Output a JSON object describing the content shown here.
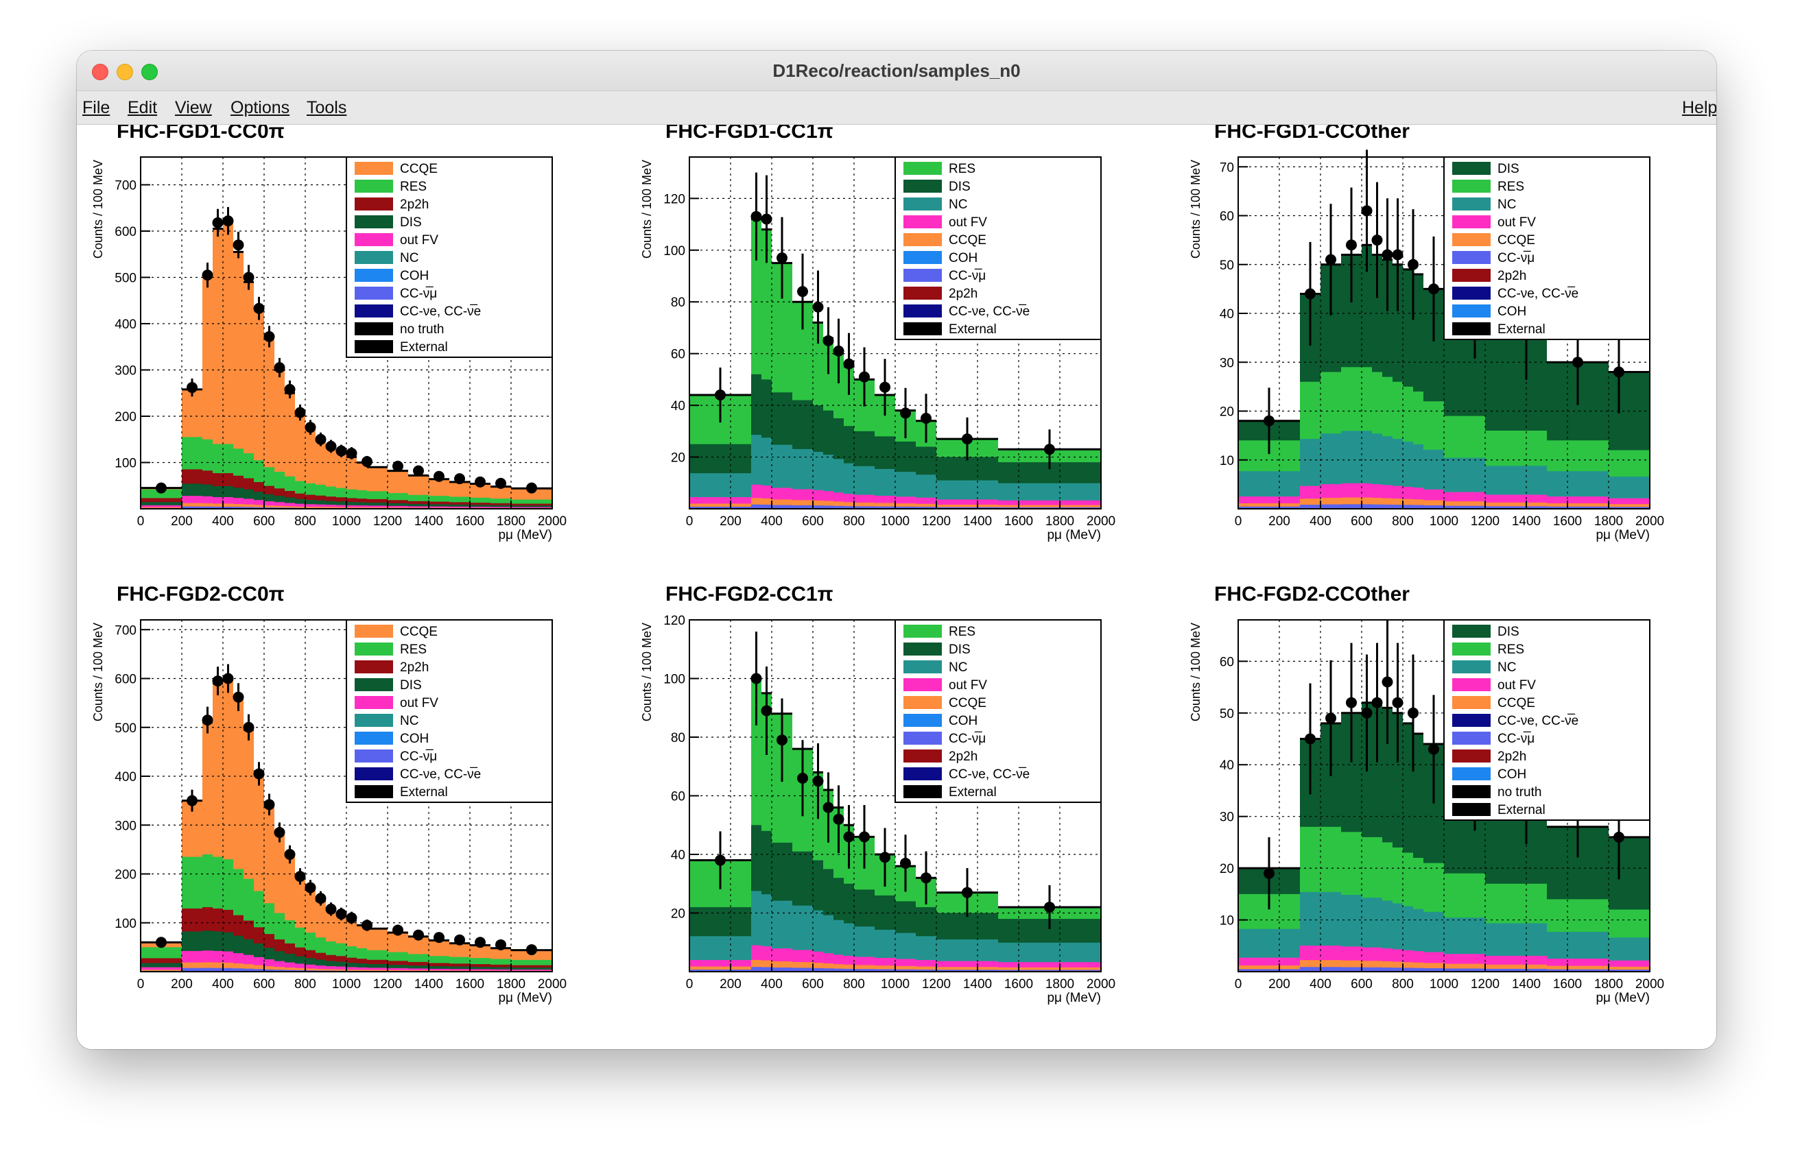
{
  "window": {
    "title": "D1Reco/reaction/samples_n0"
  },
  "menubar": {
    "file": "File",
    "edit": "Edit",
    "view": "View",
    "options": "Options",
    "tools": "Tools",
    "help": "Help"
  },
  "colors": {
    "CCQE": "#fd8c3c",
    "RES": "#2dc443",
    "2p2h": "#960d12",
    "DIS": "#0b5a30",
    "out FV": "#ff2ec3",
    "NC": "#24938f",
    "COH": "#1e86f0",
    "CC-nubar_mu": "#5a63ee",
    "CC-nu_e": "#0b0b8a",
    "no truth": "#000000",
    "External": "#000000"
  },
  "chart_data": [
    {
      "type": "bar",
      "title": "FHC-FGD1-CC0π",
      "ylabel": "Counts / 100 MeV",
      "xlabel": "pμ (MeV)",
      "ylim": [
        0,
        760
      ],
      "yticks": [
        100,
        200,
        300,
        400,
        500,
        600,
        700
      ],
      "xlim": [
        0,
        2000
      ],
      "xticks": [
        0,
        200,
        400,
        600,
        800,
        1000,
        1200,
        1400,
        1600,
        1800,
        2000
      ],
      "legend": [
        "CCQE",
        "RES",
        "2p2h",
        "DIS",
        "out FV",
        "NC",
        "COH",
        "CC-ν̅μ",
        "CC-νe, CC-ν̅e",
        "no truth",
        "External"
      ],
      "bins": [
        0,
        200,
        300,
        350,
        400,
        450,
        500,
        550,
        600,
        650,
        700,
        750,
        800,
        850,
        900,
        950,
        1000,
        1050,
        1100,
        1200,
        1300,
        1400,
        1500,
        1600,
        1700,
        1800,
        2000
      ],
      "total": [
        45,
        258,
        505,
        605,
        620,
        555,
        490,
        430,
        370,
        300,
        250,
        205,
        175,
        150,
        135,
        122,
        112,
        100,
        90,
        82,
        72,
        64,
        58,
        54,
        48,
        44
      ],
      "non_ccqe": [
        42,
        155,
        150,
        140,
        140,
        130,
        120,
        105,
        90,
        80,
        70,
        60,
        55,
        52,
        48,
        45,
        42,
        40,
        38,
        34,
        30,
        28,
        26,
        24,
        22,
        20
      ],
      "data_points": [
        [
          100,
          45
        ],
        [
          250,
          262
        ],
        [
          325,
          505
        ],
        [
          375,
          618
        ],
        [
          425,
          622
        ],
        [
          475,
          570
        ],
        [
          525,
          500
        ],
        [
          575,
          433
        ],
        [
          625,
          372
        ],
        [
          675,
          305
        ],
        [
          725,
          258
        ],
        [
          775,
          208
        ],
        [
          825,
          176
        ],
        [
          875,
          150
        ],
        [
          925,
          135
        ],
        [
          975,
          125
        ],
        [
          1025,
          120
        ],
        [
          1100,
          102
        ],
        [
          1250,
          92
        ],
        [
          1350,
          82
        ],
        [
          1450,
          70
        ],
        [
          1550,
          65
        ],
        [
          1650,
          58
        ],
        [
          1750,
          55
        ],
        [
          1900,
          45
        ]
      ]
    },
    {
      "type": "bar",
      "title": "FHC-FGD1-CC1π",
      "ylabel": "Counts / 100 MeV",
      "xlabel": "pμ (MeV)",
      "ylim": [
        0,
        136
      ],
      "yticks": [
        20,
        40,
        60,
        80,
        100,
        120
      ],
      "xlim": [
        0,
        2000
      ],
      "xticks": [
        0,
        200,
        400,
        600,
        800,
        1000,
        1200,
        1400,
        1600,
        1800,
        2000
      ],
      "legend": [
        "RES",
        "DIS",
        "NC",
        "out FV",
        "CCQE",
        "COH",
        "CC-ν̅μ",
        "2p2h",
        "CC-νe, CC-ν̅e",
        "External"
      ],
      "bins": [
        0,
        300,
        350,
        400,
        500,
        600,
        650,
        700,
        750,
        800,
        900,
        1000,
        1100,
        1200,
        1500,
        1800,
        2000
      ],
      "total": [
        44,
        112,
        108,
        95,
        80,
        72,
        66,
        60,
        55,
        50,
        44,
        38,
        34,
        27,
        23,
        23
      ],
      "non_res": [
        25,
        52,
        50,
        45,
        42,
        40,
        38,
        35,
        32,
        30,
        28,
        26,
        24,
        20,
        18,
        18
      ],
      "data_points": [
        [
          150,
          44
        ],
        [
          325,
          113
        ],
        [
          375,
          112
        ],
        [
          450,
          97
        ],
        [
          550,
          84
        ],
        [
          625,
          78
        ],
        [
          675,
          65
        ],
        [
          725,
          61
        ],
        [
          775,
          56
        ],
        [
          850,
          51
        ],
        [
          950,
          47
        ],
        [
          1050,
          37
        ],
        [
          1150,
          35
        ],
        [
          1350,
          27
        ],
        [
          1750,
          23
        ]
      ]
    },
    {
      "type": "bar",
      "title": "FHC-FGD1-CCOther",
      "ylabel": "Counts / 100 MeV",
      "xlabel": "pμ (MeV)",
      "ylim": [
        0,
        72
      ],
      "yticks": [
        10,
        20,
        30,
        40,
        50,
        60,
        70
      ],
      "xlim": [
        0,
        2000
      ],
      "xticks": [
        0,
        200,
        400,
        600,
        800,
        1000,
        1200,
        1400,
        1600,
        1800,
        2000
      ],
      "legend": [
        "DIS",
        "RES",
        "NC",
        "out FV",
        "CCQE",
        "CC-ν̅μ",
        "2p2h",
        "CC-νe, CC-ν̅e",
        "COH",
        "External"
      ],
      "bins": [
        0,
        300,
        400,
        500,
        600,
        650,
        700,
        750,
        800,
        850,
        900,
        1000,
        1200,
        1500,
        1800,
        2000
      ],
      "total": [
        18,
        44,
        50,
        52,
        54,
        52,
        51,
        50,
        49,
        48,
        45,
        40,
        35,
        30,
        28
      ],
      "non_dis": [
        14,
        26,
        28,
        29,
        29,
        28,
        27,
        26,
        25,
        24,
        22,
        19,
        16,
        14,
        12
      ],
      "data_points": [
        [
          150,
          18
        ],
        [
          350,
          44
        ],
        [
          450,
          51
        ],
        [
          550,
          54
        ],
        [
          625,
          61
        ],
        [
          675,
          55
        ],
        [
          725,
          52
        ],
        [
          775,
          52
        ],
        [
          850,
          50
        ],
        [
          950,
          45
        ],
        [
          1150,
          41
        ],
        [
          1400,
          36
        ],
        [
          1650,
          30
        ],
        [
          1850,
          28
        ]
      ]
    },
    {
      "type": "bar",
      "title": "FHC-FGD2-CC0π",
      "ylabel": "Counts / 100 MeV",
      "xlabel": "pμ (MeV)",
      "ylim": [
        0,
        720
      ],
      "yticks": [
        100,
        200,
        300,
        400,
        500,
        600,
        700
      ],
      "xlim": [
        0,
        2000
      ],
      "xticks": [
        0,
        200,
        400,
        600,
        800,
        1000,
        1200,
        1400,
        1600,
        1800,
        2000
      ],
      "legend": [
        "CCQE",
        "RES",
        "2p2h",
        "DIS",
        "out FV",
        "NC",
        "COH",
        "CC-ν̅μ",
        "CC-νe, CC-ν̅e",
        "External"
      ],
      "bins": [
        0,
        200,
        300,
        350,
        400,
        450,
        500,
        550,
        600,
        650,
        700,
        750,
        800,
        850,
        900,
        950,
        1000,
        1050,
        1100,
        1200,
        1300,
        1400,
        1500,
        1600,
        1700,
        1800,
        2000
      ],
      "total": [
        60,
        350,
        510,
        590,
        600,
        560,
        495,
        410,
        340,
        285,
        240,
        195,
        170,
        145,
        125,
        115,
        105,
        95,
        88,
        80,
        72,
        64,
        58,
        54,
        48,
        44
      ],
      "non_ccqe": [
        50,
        235,
        240,
        235,
        230,
        210,
        190,
        165,
        140,
        120,
        105,
        90,
        80,
        70,
        62,
        58,
        52,
        48,
        44,
        40,
        36,
        32,
        30,
        28,
        26,
        24
      ],
      "data_points": [
        [
          100,
          60
        ],
        [
          250,
          350
        ],
        [
          325,
          515
        ],
        [
          375,
          595
        ],
        [
          425,
          600
        ],
        [
          475,
          562
        ],
        [
          525,
          500
        ],
        [
          575,
          405
        ],
        [
          625,
          342
        ],
        [
          675,
          285
        ],
        [
          725,
          240
        ],
        [
          775,
          195
        ],
        [
          825,
          172
        ],
        [
          875,
          150
        ],
        [
          925,
          128
        ],
        [
          975,
          118
        ],
        [
          1025,
          110
        ],
        [
          1100,
          95
        ],
        [
          1250,
          85
        ],
        [
          1350,
          75
        ],
        [
          1450,
          70
        ],
        [
          1550,
          65
        ],
        [
          1650,
          60
        ],
        [
          1750,
          55
        ],
        [
          1900,
          45
        ]
      ]
    },
    {
      "type": "bar",
      "title": "FHC-FGD2-CC1π",
      "ylabel": "Counts / 100 MeV",
      "xlabel": "pμ (MeV)",
      "ylim": [
        0,
        120
      ],
      "yticks": [
        20,
        40,
        60,
        80,
        100,
        120
      ],
      "xlim": [
        0,
        2000
      ],
      "xticks": [
        0,
        200,
        400,
        600,
        800,
        1000,
        1200,
        1400,
        1600,
        1800,
        2000
      ],
      "legend": [
        "RES",
        "DIS",
        "NC",
        "out FV",
        "CCQE",
        "COH",
        "CC-ν̅μ",
        "2p2h",
        "CC-νe, CC-ν̅e",
        "External"
      ],
      "bins": [
        0,
        300,
        350,
        400,
        500,
        600,
        650,
        700,
        750,
        800,
        900,
        1000,
        1100,
        1200,
        1500,
        1800,
        2000
      ],
      "total": [
        38,
        100,
        95,
        88,
        76,
        68,
        62,
        56,
        50,
        46,
        40,
        36,
        32,
        27,
        22,
        22
      ],
      "non_res": [
        22,
        50,
        48,
        44,
        41,
        38,
        35,
        32,
        30,
        28,
        26,
        24,
        22,
        20,
        18,
        18
      ],
      "data_points": [
        [
          150,
          38
        ],
        [
          325,
          100
        ],
        [
          375,
          89
        ],
        [
          450,
          79
        ],
        [
          550,
          66
        ],
        [
          625,
          65
        ],
        [
          675,
          56
        ],
        [
          725,
          52
        ],
        [
          775,
          46
        ],
        [
          850,
          46
        ],
        [
          950,
          39
        ],
        [
          1050,
          37
        ],
        [
          1150,
          32
        ],
        [
          1350,
          27
        ],
        [
          1750,
          22
        ]
      ]
    },
    {
      "type": "bar",
      "title": "FHC-FGD2-CCOther",
      "ylabel": "Counts / 100 MeV",
      "xlabel": "pμ (MeV)",
      "ylim": [
        0,
        68
      ],
      "yticks": [
        10,
        20,
        30,
        40,
        50,
        60
      ],
      "xlim": [
        0,
        2000
      ],
      "xticks": [
        0,
        200,
        400,
        600,
        800,
        1000,
        1200,
        1400,
        1600,
        1800,
        2000
      ],
      "legend": [
        "DIS",
        "RES",
        "NC",
        "out FV",
        "CCQE",
        "CC-νe, CC-ν̅e",
        "CC-ν̅μ",
        "2p2h",
        "COH",
        "no truth",
        "External"
      ],
      "bins": [
        0,
        300,
        400,
        500,
        600,
        650,
        700,
        750,
        800,
        850,
        900,
        1000,
        1200,
        1500,
        1800,
        2000
      ],
      "total": [
        20,
        45,
        48,
        50,
        52,
        52,
        51,
        50,
        48,
        46,
        44,
        38,
        32,
        28,
        26
      ],
      "non_dis": [
        15,
        28,
        28,
        27,
        26,
        26,
        25,
        24,
        23,
        22,
        21,
        19,
        17,
        14,
        12
      ],
      "data_points": [
        [
          150,
          19
        ],
        [
          350,
          45
        ],
        [
          450,
          49
        ],
        [
          550,
          52
        ],
        [
          625,
          50
        ],
        [
          675,
          52
        ],
        [
          725,
          56
        ],
        [
          775,
          52
        ],
        [
          850,
          50
        ],
        [
          950,
          43
        ],
        [
          1150,
          37
        ],
        [
          1400,
          34
        ],
        [
          1650,
          31
        ],
        [
          1850,
          26
        ]
      ]
    }
  ]
}
